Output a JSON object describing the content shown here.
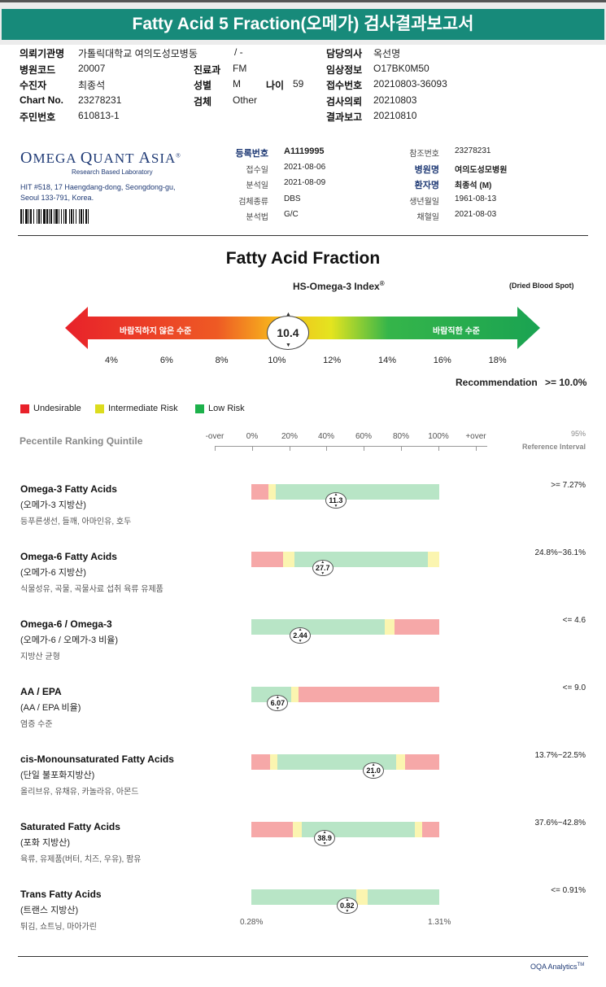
{
  "header": {
    "title": "Fatty Acid 5 Fraction(오메가) 검사결과보고서"
  },
  "patient_info": {
    "rows": [
      [
        {
          "label": "의뢰기관명",
          "value": "가톨릭대학교 여의도성모병동"
        },
        {
          "label": "",
          "value": "/ -"
        },
        {
          "label": "담당의사",
          "value": "옥선명"
        }
      ],
      [
        {
          "label": "병원코드",
          "value": "20007"
        },
        {
          "label": "진료과",
          "value": "FM"
        },
        {
          "label": "임상정보",
          "value": "O17BK0M50"
        }
      ],
      [
        {
          "label": "수진자",
          "value": "최종석"
        },
        {
          "label": "성별",
          "value": "M"
        },
        {
          "label": "접수번호",
          "value": "20210803-36093"
        }
      ],
      [
        {
          "label": "Chart No.",
          "value": "23278231"
        },
        {
          "label": "검체",
          "value": "Other"
        },
        {
          "label": "검사의뢰",
          "value": "20210803"
        }
      ],
      [
        {
          "label": "주민번호",
          "value": "610813-1"
        },
        {
          "label": "",
          "value": ""
        },
        {
          "label": "결과보고",
          "value": "20210810"
        }
      ]
    ],
    "age_label": "나이",
    "age_value": "59"
  },
  "lab": {
    "name_part1": "Omega",
    "name_part2": "Quant",
    "name_part3": "Asia",
    "tagline": "Research Based Laboratory",
    "address1": "HIT #518, 17 Haengdang-dong, Seongdong-gu,",
    "address2": "Seoul 133-791, Korea."
  },
  "sample_info": {
    "left": [
      {
        "label": "등록번호",
        "value": "A1119995"
      },
      {
        "label": "접수일",
        "value": "2021-08-06"
      },
      {
        "label": "분석일",
        "value": "2021-08-09"
      },
      {
        "label": "검체종류",
        "value": "DBS"
      },
      {
        "label": "분석법",
        "value": "G/C"
      }
    ],
    "right": [
      {
        "label": "참조번호",
        "value": "23278231"
      },
      {
        "label": "병원명",
        "value": "여의도성모병원"
      },
      {
        "label": "환자명",
        "value": "최종석 (M)"
      },
      {
        "label": "생년월일",
        "value": "1961-08-13"
      },
      {
        "label": "채혈일",
        "value": "2021-08-03"
      }
    ]
  },
  "fraction": {
    "title": "Fatty Acid Fraction",
    "index_label": "HS-Omega-3 Index",
    "index_reg": "®",
    "sample_type": "(Dried Blood Spot)",
    "arrow_left_text": "바람직하지 않은 수준",
    "arrow_right_text": "바람직한 수준",
    "value": "10.4",
    "value_num": 10.4,
    "ticks": [
      "4%",
      "6%",
      "8%",
      "10%",
      "12%",
      "14%",
      "16%",
      "18%"
    ],
    "recommendation_label": "Recommendation",
    "recommendation_value": ">= 10.0%"
  },
  "legend": [
    {
      "label": "Undesirable",
      "color": "#e8212a"
    },
    {
      "label": "Intermediate Risk",
      "color": "#dcdc1e"
    },
    {
      "label": "Low Risk",
      "color": "#1db14b"
    }
  ],
  "scale": {
    "title": "Pecentile Ranking Quintile",
    "labels": [
      "-over",
      "0%",
      "20%",
      "40%",
      "60%",
      "80%",
      "100%",
      "+over"
    ],
    "ref_title1": "95%",
    "ref_title2": "Reference Interval"
  },
  "colors": {
    "red": "#f6a8a8",
    "yellow": "#fbf5b0",
    "green": "#b8e5c6",
    "teal": "#178a7a"
  },
  "results": [
    {
      "name": "Omega-3 Fatty Acids",
      "sub": "(오메가-3 지방산)",
      "desc": "등푸른생선, 들깨, 아마인유, 호두",
      "value": "11.3",
      "position_pct": 45,
      "segments": [
        [
          "red",
          9
        ],
        [
          "yellow",
          4
        ],
        [
          "green",
          87
        ]
      ],
      "ref": ">= 7.27%"
    },
    {
      "name": "Omega-6 Fatty Acids",
      "sub": "(오메가-6 지방산)",
      "desc": "식물성유, 곡물, 곡물사료 섭취 육류 유제품",
      "value": "27.7",
      "position_pct": 38,
      "segments": [
        [
          "red",
          17
        ],
        [
          "yellow",
          6
        ],
        [
          "green",
          71
        ],
        [
          "yellow",
          6
        ]
      ],
      "ref": "24.8%~36.1%"
    },
    {
      "name": "Omega-6 / Omega-3",
      "sub": "(오메가-6 / 오메가-3 비율)",
      "desc": "지방산 균형",
      "value": "2.44",
      "position_pct": 26,
      "segments": [
        [
          "green",
          71
        ],
        [
          "yellow",
          5
        ],
        [
          "red",
          24
        ]
      ],
      "ref": "<= 4.6"
    },
    {
      "name": "AA / EPA",
      "sub": "(AA / EPA 비율)",
      "desc": "염증 수준",
      "value": "6.07",
      "position_pct": 14,
      "segments": [
        [
          "green",
          21
        ],
        [
          "yellow",
          4
        ],
        [
          "red",
          75
        ]
      ],
      "ref": "<= 9.0"
    },
    {
      "name": "cis-Monounsaturated Fatty Acids",
      "sub": "(단일 불포화지방산)",
      "desc": "올리브유, 유채유, 카놀라유, 아몬드",
      "value": "21.0",
      "position_pct": 65,
      "segments": [
        [
          "red",
          10
        ],
        [
          "yellow",
          4
        ],
        [
          "green",
          63
        ],
        [
          "yellow",
          5
        ],
        [
          "red",
          18
        ]
      ],
      "ref": "13.7%~22.5%"
    },
    {
      "name": "Saturated Fatty Acids",
      "sub": "(포화 지방산)",
      "desc": "육류, 유제품(버터, 치즈, 우유), 팜유",
      "value": "38.9",
      "position_pct": 39,
      "segments": [
        [
          "red",
          22
        ],
        [
          "yellow",
          5
        ],
        [
          "green",
          60
        ],
        [
          "yellow",
          4
        ],
        [
          "red",
          9
        ]
      ],
      "ref": "37.6%~42.8%"
    },
    {
      "name": "Trans Fatty Acids",
      "sub": "(트랜스 지방산)",
      "desc": "튀김, 쇼트닝, 마아가린",
      "value": "0.82",
      "position_pct": 51,
      "segments": [
        [
          "green",
          56
        ],
        [
          "yellow",
          6
        ],
        [
          "green",
          38
        ]
      ],
      "ref": "<= 0.91%",
      "min_label": "0.28%",
      "max_label": "1.31%"
    }
  ],
  "footer": {
    "brand": "OQA Analytics",
    "tm": "TM"
  }
}
